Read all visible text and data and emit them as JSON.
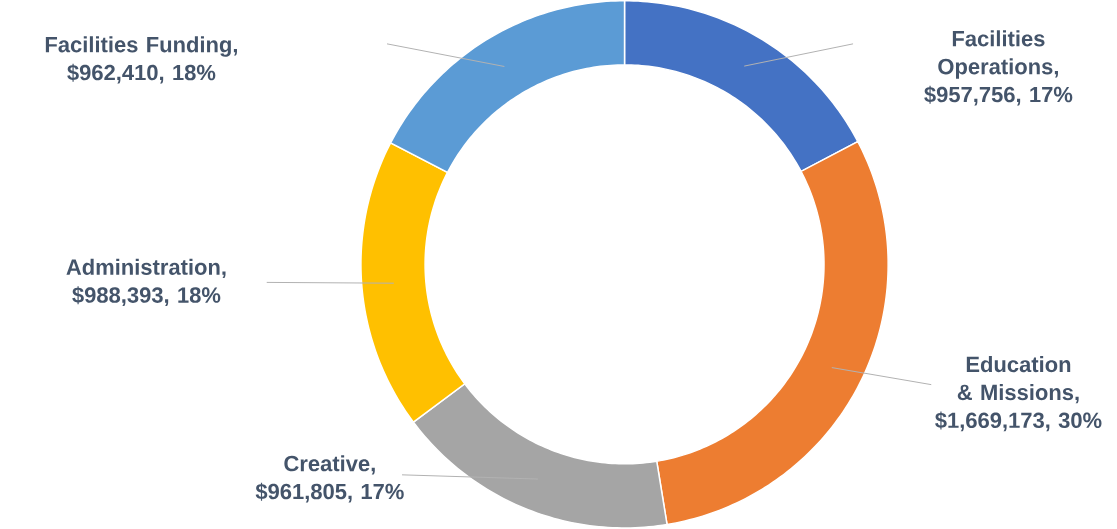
{
  "chart_data": {
    "type": "donut",
    "categories": [
      "Facilities Operations",
      "Education & Missions",
      "Creative",
      "Administration",
      "Facilities Funding"
    ],
    "values": [
      957756,
      1669173,
      961805,
      988393,
      962410
    ],
    "value_labels": [
      ", $957,756, 17%",
      ", $1,669,173, 30%",
      ", $961,805, 17%",
      ", $988,393, 18%",
      ", $962,410, 18%"
    ],
    "colors": [
      "#4472c4",
      "#ed7d31",
      "#a5a5a5",
      "#ffc000",
      "#5b9bd5"
    ]
  }
}
